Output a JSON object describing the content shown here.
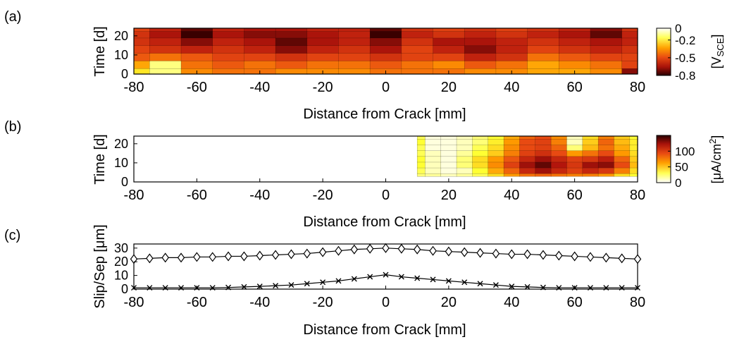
{
  "panels": [
    {
      "label": "(a)",
      "type": "heatmap",
      "xlabel": "Distance from Crack [mm]",
      "ylabel": "Time [d]",
      "xticks": [
        "-80",
        "-60",
        "-40",
        "-20",
        "0",
        "20",
        "40",
        "60",
        "80"
      ],
      "yticks": [
        "0",
        "10",
        "20"
      ],
      "colorbar_ticks": [
        "0",
        "-0.2",
        "-0.5",
        "-0.8"
      ],
      "colorbar_label": "[V",
      "colorbar_label_sub": "SCE",
      "colorbar_label_end": "]"
    },
    {
      "label": "(b)",
      "type": "heatmap",
      "xlabel": "Distance from Crack [mm]",
      "ylabel": "Time [d]",
      "xticks": [
        "-80",
        "-60",
        "-40",
        "-20",
        "0",
        "20",
        "40",
        "60",
        "80"
      ],
      "yticks": [
        "0",
        "10",
        "20"
      ],
      "colorbar_ticks": [
        "100",
        "50",
        "0"
      ],
      "colorbar_label": "[μA/cm",
      "colorbar_label_sup": "2",
      "colorbar_label_end": "]"
    },
    {
      "label": "(c)",
      "type": "line",
      "xlabel": "Distance from Crack [mm]",
      "ylabel": "Slip/Sep [μm]",
      "xticks": [
        "-80",
        "-60",
        "-40",
        "-20",
        "0",
        "20",
        "40",
        "60",
        "80"
      ],
      "yticks": [
        "0",
        "10",
        "20",
        "30"
      ]
    }
  ],
  "chart_data": [
    {
      "type": "heatmap",
      "panel": "(a)",
      "quantity": "potential [V_SCE]",
      "x_range": [
        -80,
        80
      ],
      "y_range": [
        0,
        24
      ],
      "color_range": [
        -0.8,
        0
      ],
      "colormap": [
        "#ffffff",
        "#ffff33",
        "#ff9900",
        "#e84a12",
        "#b3150c",
        "#3a0000"
      ],
      "x": [
        -80,
        -70,
        -60,
        -50,
        -40,
        -30,
        -20,
        -10,
        0,
        10,
        20,
        30,
        40,
        50,
        60,
        70,
        80
      ],
      "y": [
        1,
        5,
        9,
        13,
        17,
        21,
        24
      ],
      "z": [
        [
          -0.2,
          -0.1,
          -0.35,
          -0.4,
          -0.4,
          -0.35,
          -0.35,
          -0.35,
          -0.4,
          -0.4,
          -0.4,
          -0.35,
          -0.35,
          -0.3,
          -0.3,
          -0.35,
          -0.7
        ],
        [
          -0.3,
          -0.1,
          -0.4,
          -0.45,
          -0.4,
          -0.45,
          -0.4,
          -0.4,
          -0.45,
          -0.4,
          -0.35,
          -0.45,
          -0.4,
          -0.3,
          -0.35,
          -0.4,
          -0.5
        ],
        [
          -0.45,
          -0.4,
          -0.45,
          -0.5,
          -0.5,
          -0.55,
          -0.5,
          -0.5,
          -0.55,
          -0.5,
          -0.5,
          -0.6,
          -0.55,
          -0.4,
          -0.45,
          -0.5,
          -0.5
        ],
        [
          -0.5,
          -0.55,
          -0.6,
          -0.55,
          -0.6,
          -0.7,
          -0.6,
          -0.55,
          -0.65,
          -0.5,
          -0.6,
          -0.7,
          -0.6,
          -0.5,
          -0.55,
          -0.6,
          -0.55
        ],
        [
          -0.55,
          -0.6,
          -0.7,
          -0.6,
          -0.65,
          -0.75,
          -0.65,
          -0.6,
          -0.7,
          -0.55,
          -0.65,
          -0.65,
          -0.6,
          -0.55,
          -0.6,
          -0.65,
          -0.6
        ],
        [
          -0.55,
          -0.65,
          -0.8,
          -0.65,
          -0.7,
          -0.7,
          -0.65,
          -0.6,
          -0.8,
          -0.6,
          -0.55,
          -0.6,
          -0.55,
          -0.6,
          -0.65,
          -0.75,
          -0.6
        ],
        [
          -0.5,
          -0.6,
          -0.75,
          -0.6,
          -0.65,
          -0.65,
          -0.6,
          -0.6,
          -0.75,
          -0.55,
          -0.5,
          -0.55,
          -0.5,
          -0.55,
          -0.6,
          -0.7,
          -0.55
        ]
      ]
    },
    {
      "type": "heatmap",
      "panel": "(b)",
      "quantity": "current density [μA/cm²]",
      "x_range": [
        -80,
        80
      ],
      "y_range": [
        0,
        24
      ],
      "color_range": [
        0,
        150
      ],
      "colormap": [
        "#ffffff",
        "#ffff33",
        "#ff9900",
        "#e84a12",
        "#b3150c",
        "#3a0000"
      ],
      "data_x_start": 10,
      "x": [
        10,
        15,
        20,
        25,
        30,
        35,
        40,
        45,
        50,
        55,
        60,
        65,
        70,
        75,
        80
      ],
      "y": [
        3,
        6,
        9,
        12,
        15,
        18,
        21,
        24
      ],
      "z": [
        [
          20,
          15,
          10,
          15,
          25,
          40,
          60,
          75,
          80,
          75,
          70,
          70,
          60,
          40,
          30
        ],
        [
          25,
          10,
          5,
          10,
          30,
          55,
          80,
          110,
          125,
          110,
          95,
          110,
          100,
          70,
          40
        ],
        [
          30,
          10,
          5,
          20,
          40,
          65,
          95,
          125,
          140,
          120,
          100,
          125,
          130,
          90,
          50
        ],
        [
          30,
          10,
          5,
          20,
          40,
          60,
          85,
          110,
          125,
          110,
          95,
          100,
          115,
          80,
          45
        ],
        [
          25,
          10,
          5,
          15,
          30,
          45,
          70,
          95,
          105,
          90,
          60,
          75,
          90,
          60,
          40
        ],
        [
          25,
          5,
          5,
          10,
          25,
          40,
          65,
          90,
          95,
          80,
          20,
          50,
          75,
          55,
          35
        ],
        [
          30,
          5,
          5,
          10,
          20,
          35,
          60,
          90,
          95,
          70,
          10,
          45,
          80,
          50,
          35
        ],
        [
          25,
          5,
          5,
          10,
          20,
          30,
          55,
          80,
          90,
          65,
          10,
          40,
          70,
          45,
          30
        ]
      ]
    },
    {
      "type": "line",
      "panel": "(c)",
      "xlim": [
        -80,
        80
      ],
      "ylim": [
        0,
        33
      ],
      "x": [
        -80,
        -75,
        -70,
        -65,
        -60,
        -55,
        -50,
        -45,
        -40,
        -35,
        -30,
        -25,
        -20,
        -15,
        -10,
        -5,
        0,
        5,
        10,
        15,
        20,
        25,
        30,
        35,
        40,
        45,
        50,
        55,
        60,
        65,
        70,
        75,
        80
      ],
      "series": [
        {
          "marker": "diamond",
          "values": [
            22,
            22.5,
            23,
            23,
            23.5,
            23.5,
            24,
            24,
            24.5,
            25,
            25.5,
            26,
            27,
            28,
            29,
            29.5,
            30,
            29.5,
            29,
            28,
            27.5,
            27,
            26.5,
            26,
            25.5,
            25.5,
            25,
            24.5,
            24,
            23.5,
            23,
            22.5,
            22
          ]
        },
        {
          "marker": "x",
          "values": [
            1,
            1,
            1,
            1,
            1,
            1,
            1.2,
            1.6,
            2,
            2.5,
            3,
            4,
            5,
            6,
            7.5,
            9,
            10.5,
            9,
            8,
            7,
            6,
            5,
            4,
            3,
            2,
            1.6,
            1.2,
            1,
            1,
            1,
            1,
            1,
            1
          ]
        }
      ]
    }
  ]
}
